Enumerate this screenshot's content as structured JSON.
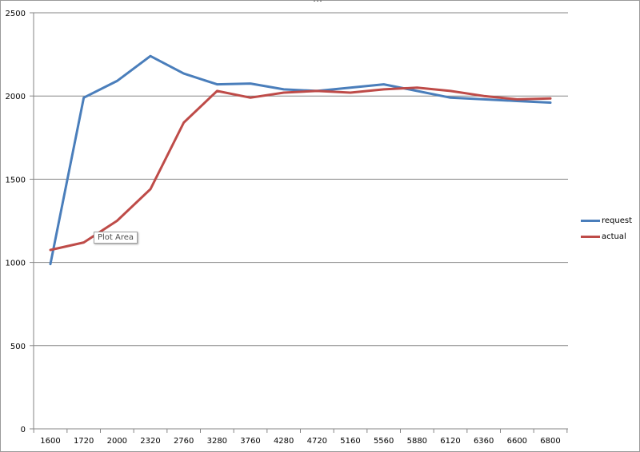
{
  "chart_data": {
    "type": "line",
    "title": "",
    "xlabel": "",
    "ylabel": "",
    "categories": [
      "1600",
      "1720",
      "2000",
      "2320",
      "2760",
      "3280",
      "3760",
      "4280",
      "4720",
      "5160",
      "5560",
      "5880",
      "6120",
      "6360",
      "6600",
      "6800"
    ],
    "series": [
      {
        "name": "request",
        "color": "#4a7ebb",
        "values": [
          990,
          1990,
          2090,
          2240,
          2135,
          2070,
          2075,
          2040,
          2030,
          2050,
          2070,
          2030,
          1990,
          1980,
          1970,
          1960
        ]
      },
      {
        "name": "actual",
        "color": "#be4b48",
        "values": [
          1075,
          1120,
          1250,
          1440,
          1840,
          2030,
          1990,
          2020,
          2030,
          2020,
          2040,
          2050,
          2030,
          2000,
          1980,
          1985
        ]
      }
    ],
    "ylim": [
      0,
      2500
    ],
    "yticks": [
      0,
      500,
      1000,
      1500,
      2000,
      2500
    ],
    "grid": true,
    "legend": "right"
  },
  "tooltip": {
    "text": "Plot Area"
  }
}
